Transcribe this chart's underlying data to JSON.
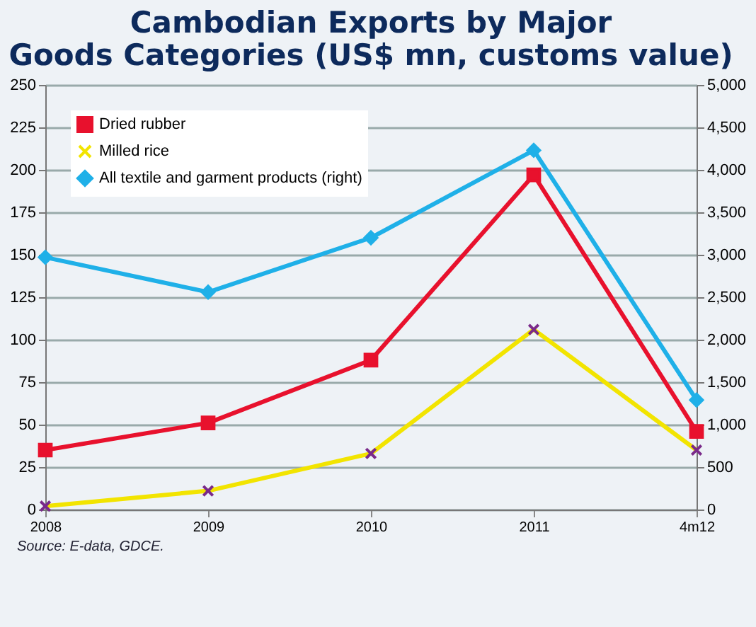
{
  "chart_data": {
    "type": "line",
    "title": "Cambodian Exports by Major Goods Categories (US$ mn, customs value)",
    "categories": [
      "2008",
      "2009",
      "2010",
      "2011",
      "4m12"
    ],
    "series": [
      {
        "name": "Dried rubber",
        "color": "#e8112d",
        "marker": "square",
        "values": [
          35,
          51,
          88,
          197,
          46
        ]
      },
      {
        "name": "Milled rice",
        "color": "#f2e400",
        "marker": "cross",
        "values": [
          2,
          11,
          33,
          106,
          35
        ]
      },
      {
        "name": "All textile and garment products (right)",
        "color": "#1fb0e8",
        "marker": "diamond",
        "axis": "y2",
        "values": [
          2970,
          2560,
          3200,
          4230,
          1290
        ]
      }
    ],
    "ylim": [
      0,
      250
    ],
    "yticks": [
      0,
      25,
      50,
      75,
      100,
      125,
      150,
      175,
      200,
      225,
      250
    ],
    "y2lim": [
      0,
      5000
    ],
    "y2ticks": [
      0,
      500,
      {
        "value": 1000,
        "label": "1,000"
      },
      {
        "value": 1500,
        "label": "1,500"
      },
      {
        "value": 2000,
        "label": "2,000"
      },
      {
        "value": 2500,
        "label": "2,500"
      },
      {
        "value": 3000,
        "label": "3,000"
      },
      {
        "value": 3500,
        "label": "3,500"
      },
      {
        "value": 4000,
        "label": "4,000"
      },
      {
        "value": 4500,
        "label": "4,500"
      },
      {
        "value": 5000,
        "label": "5,000"
      }
    ],
    "grid": "y",
    "legend": "top left",
    "line_style": "solid",
    "annotations": [
      "Source: E-data, GDCE."
    ]
  }
}
